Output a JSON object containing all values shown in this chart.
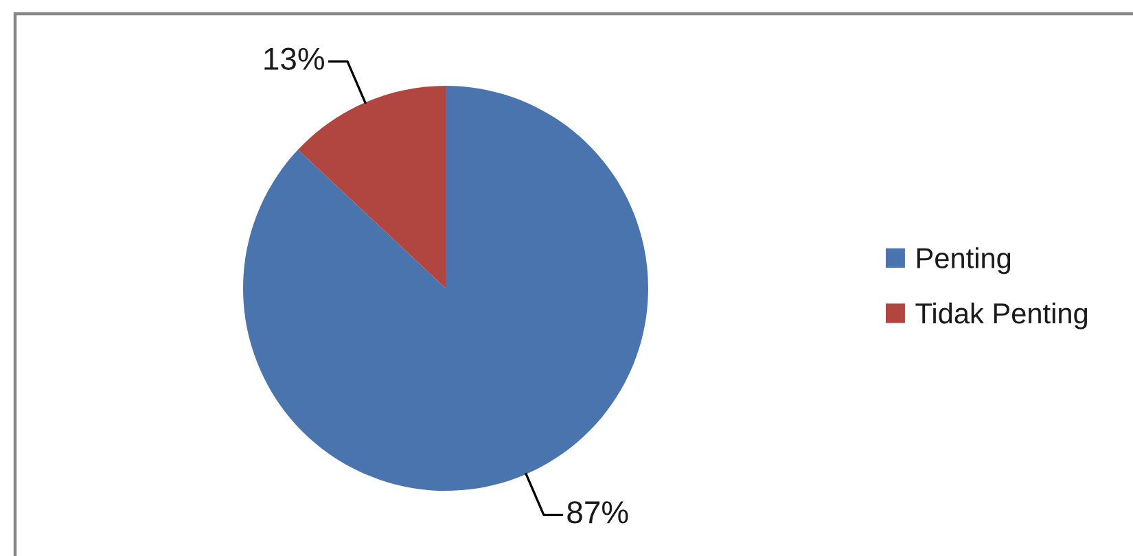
{
  "chart_data": {
    "type": "pie",
    "categories": [
      "Penting",
      "Tidak Penting"
    ],
    "values": [
      87,
      13
    ],
    "colors": [
      "#4a74ad",
      "#b0463f"
    ],
    "value_labels": [
      "87%",
      "13%"
    ],
    "legend": "right"
  }
}
